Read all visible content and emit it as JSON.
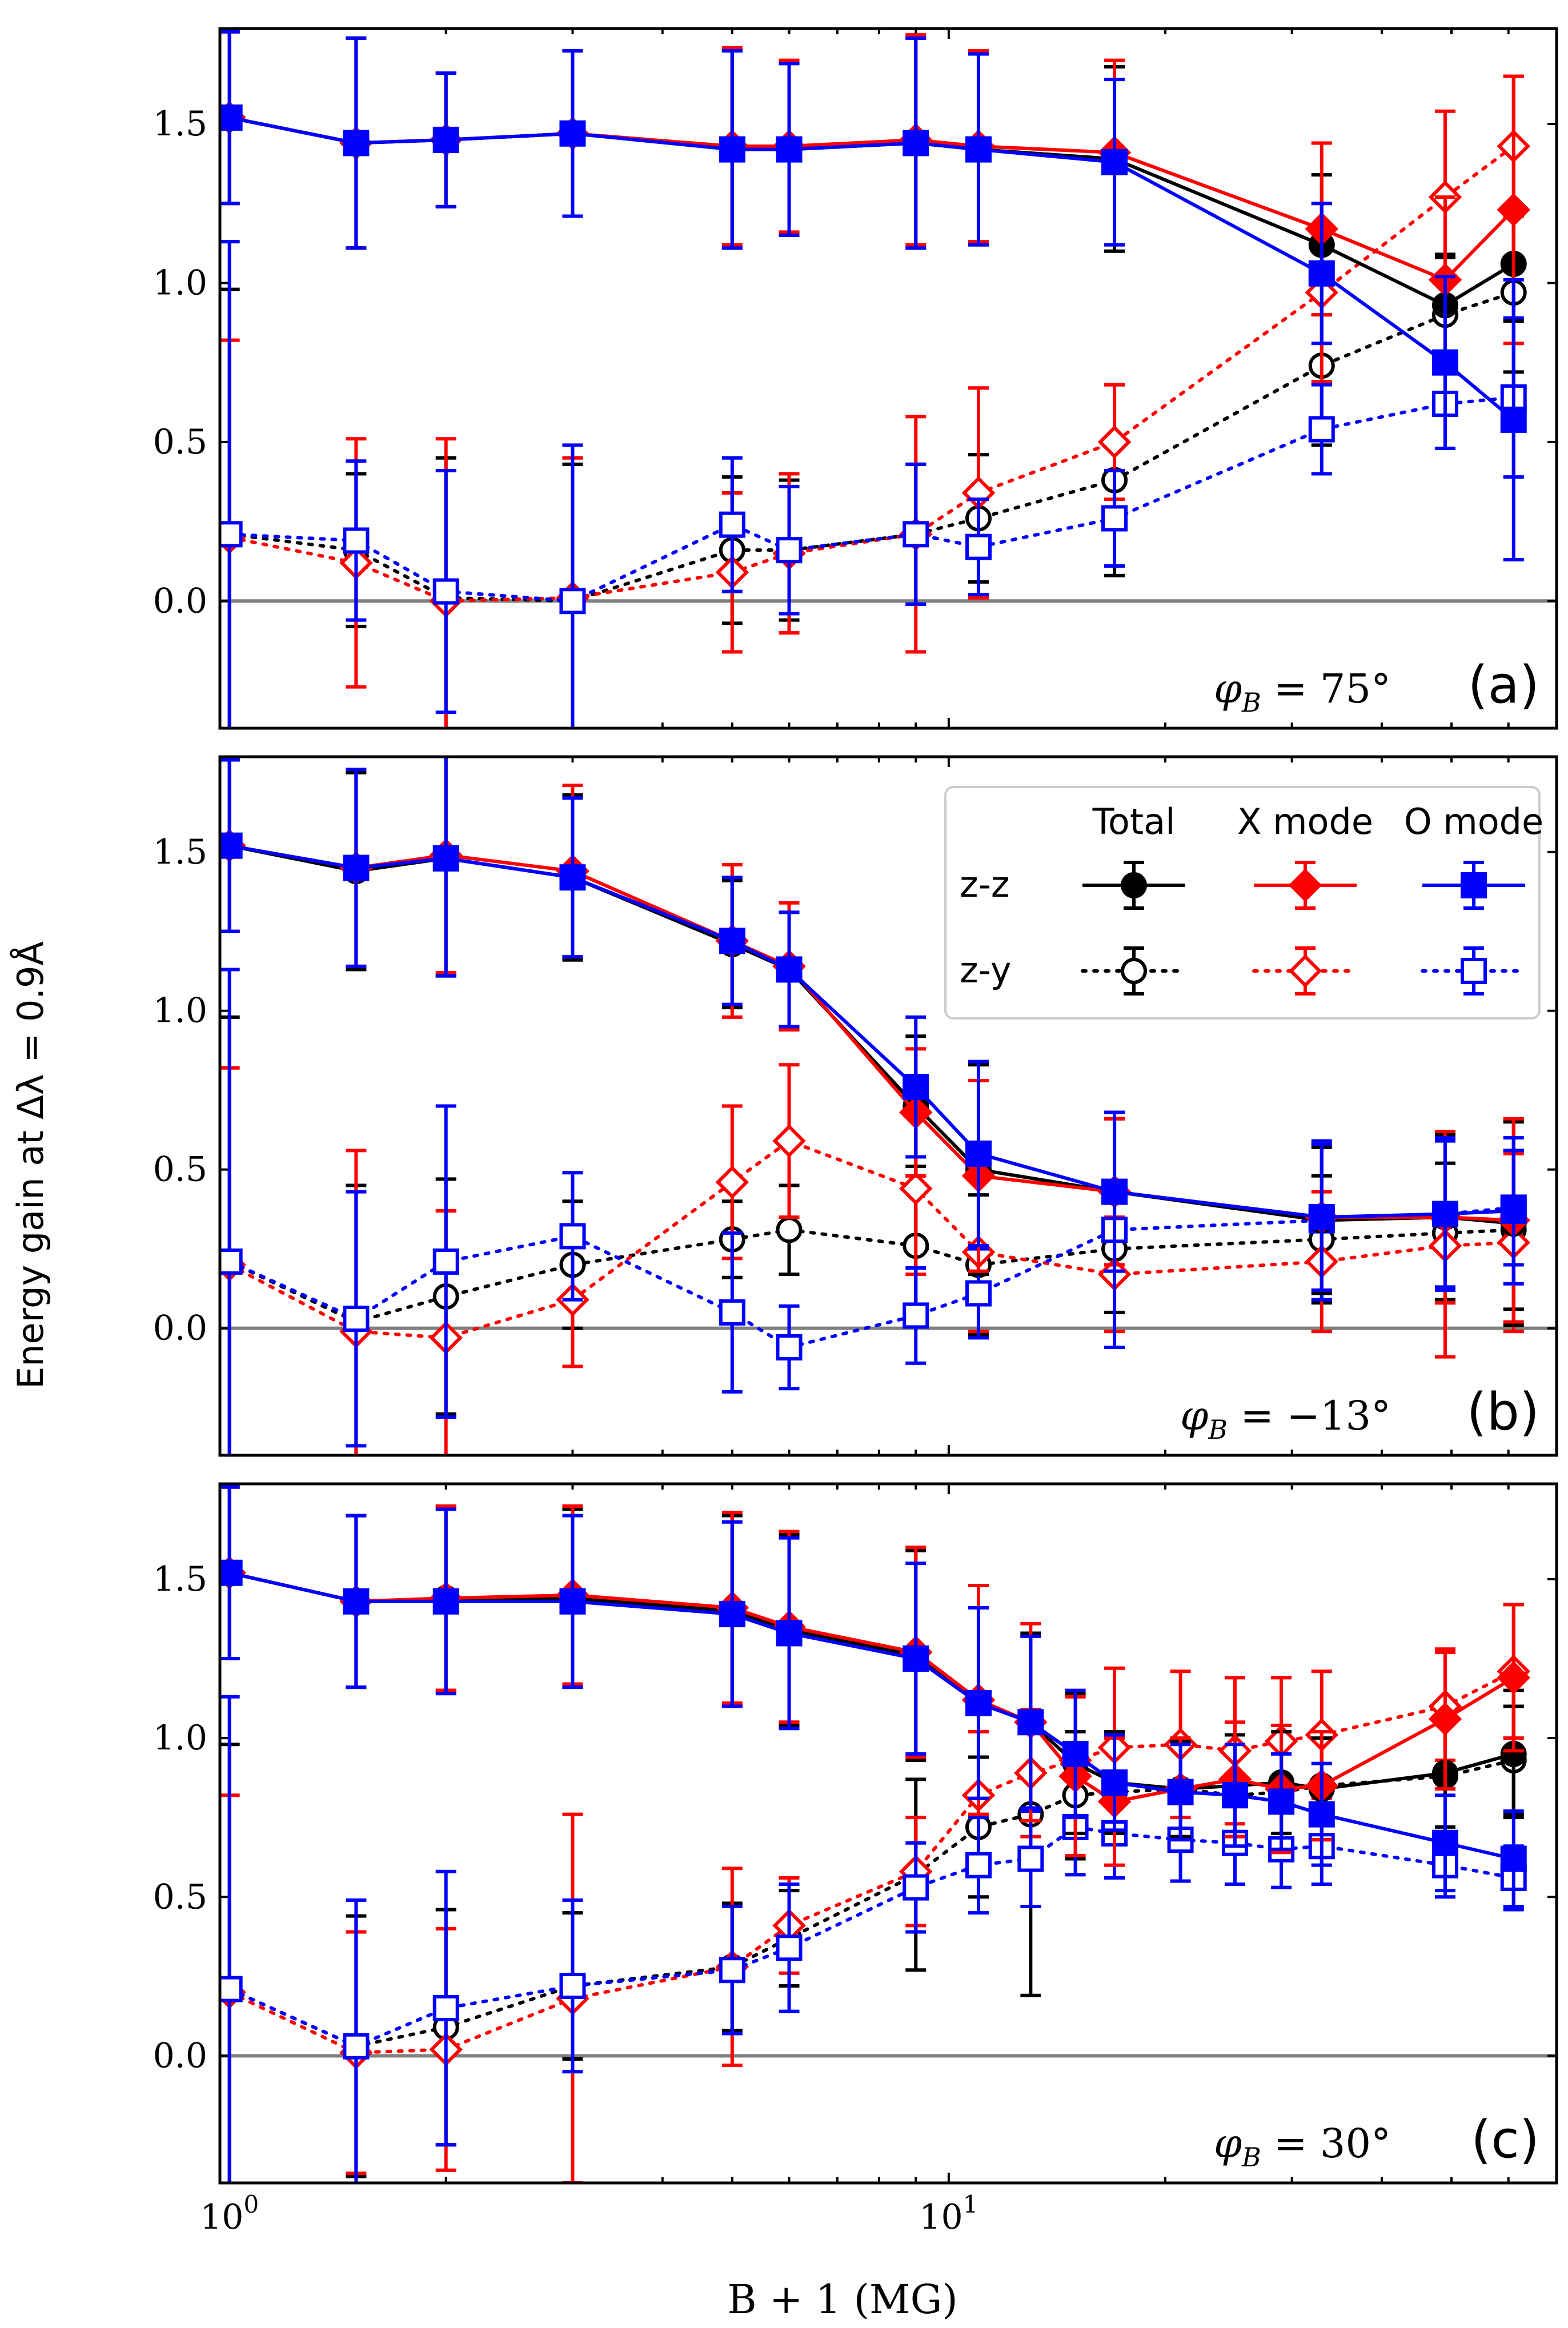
{
  "figure": {
    "ylabel": "Energy gain at Δλ = 0.9Å",
    "xlabel": "B + 1 (MG)"
  },
  "legend": {
    "col_headers": [
      "Total",
      "X mode",
      "O mode"
    ],
    "row_labels": [
      "z-z",
      "z-y"
    ]
  },
  "colors": {
    "total": "#000000",
    "xmode": "#ff0000",
    "omode": "#0000ff",
    "zero_line": "#808080"
  },
  "chart_data": [
    {
      "panel": "(a)",
      "angle_label": "φ_B = 75°",
      "type": "line",
      "xscale": "log",
      "xlim": [
        0.97,
        70
      ],
      "ylim": [
        -0.4,
        1.8
      ],
      "yticks": [
        "0.0",
        "0.5",
        "1.0",
        "1.5"
      ],
      "xticks": [],
      "series": [
        {
          "name": "Total z-z",
          "style": "solid",
          "marker": "circle-filled",
          "color": "#000000",
          "x": [
            1,
            1.5,
            2,
            3,
            5,
            6,
            9,
            11,
            17,
            33,
            49,
            61
          ],
          "y": [
            1.52,
            1.44,
            1.45,
            1.47,
            1.42,
            1.42,
            1.44,
            1.42,
            1.39,
            1.12,
            0.93,
            1.06
          ],
          "err": [
            0.27,
            0.33,
            0.21,
            0.26,
            0.31,
            0.27,
            0.33,
            0.3,
            0.29,
            0.22,
            0.16,
            0.18
          ]
        },
        {
          "name": "X mode z-z",
          "style": "solid",
          "marker": "diamond-filled",
          "color": "#ff0000",
          "x": [
            1,
            1.5,
            2,
            3,
            5,
            6,
            9,
            11,
            17,
            33,
            49,
            61
          ],
          "y": [
            1.52,
            1.44,
            1.45,
            1.47,
            1.43,
            1.43,
            1.45,
            1.43,
            1.41,
            1.17,
            1.01,
            1.23
          ],
          "err": [
            0.27,
            0.33,
            0.21,
            0.26,
            0.31,
            0.27,
            0.33,
            0.3,
            0.29,
            0.27,
            0.26,
            0.42
          ]
        },
        {
          "name": "O mode z-z",
          "style": "solid",
          "marker": "square-filled",
          "color": "#0000ff",
          "x": [
            1,
            1.5,
            2,
            3,
            5,
            6,
            9,
            11,
            17,
            33,
            49,
            61
          ],
          "y": [
            1.52,
            1.44,
            1.45,
            1.47,
            1.42,
            1.42,
            1.44,
            1.42,
            1.38,
            1.03,
            0.75,
            0.57
          ],
          "err": [
            0.27,
            0.33,
            0.21,
            0.26,
            0.31,
            0.27,
            0.33,
            0.3,
            0.26,
            0.22,
            0.27,
            0.44
          ]
        },
        {
          "name": "Total z-y",
          "style": "dotted",
          "marker": "circle-open",
          "color": "#000000",
          "x": [
            1,
            1.5,
            2,
            3,
            5,
            6,
            9,
            11,
            17,
            33,
            49,
            61
          ],
          "y": [
            0.21,
            0.16,
            0.01,
            0.0,
            0.16,
            0.16,
            0.21,
            0.26,
            0.38,
            0.74,
            0.9,
            0.97
          ],
          "err": [
            0.77,
            0.24,
            0.44,
            0.43,
            0.23,
            0.22,
            0.22,
            0.2,
            0.3,
            0.25,
            0.18,
            0.25
          ]
        },
        {
          "name": "X mode z-y",
          "style": "dotted",
          "marker": "diamond-open",
          "color": "#ff0000",
          "x": [
            1,
            1.5,
            2,
            3,
            5,
            6,
            9,
            11,
            17,
            33,
            49,
            61
          ],
          "y": [
            0.2,
            0.12,
            0.0,
            0.01,
            0.09,
            0.15,
            0.21,
            0.34,
            0.5,
            0.97,
            1.27,
            1.43
          ],
          "err": [
            0.62,
            0.39,
            0.51,
            0.44,
            0.25,
            0.25,
            0.37,
            0.33,
            0.18,
            0.28,
            0.27,
            0.22
          ]
        },
        {
          "name": "O mode z-y",
          "style": "dotted",
          "marker": "square-open",
          "color": "#0000ff",
          "x": [
            1,
            1.5,
            2,
            3,
            5,
            6,
            9,
            11,
            17,
            33,
            49,
            61
          ],
          "y": [
            0.21,
            0.19,
            0.03,
            0.0,
            0.24,
            0.16,
            0.21,
            0.17,
            0.26,
            0.54,
            0.62,
            0.64
          ],
          "err": [
            0.92,
            0.25,
            0.38,
            0.49,
            0.21,
            0.2,
            0.22,
            0.15,
            0.15,
            0.14,
            0.14,
            0.25
          ]
        }
      ]
    },
    {
      "panel": "(b)",
      "angle_label": "φ_B = −13°",
      "type": "line",
      "xscale": "log",
      "xlim": [
        0.97,
        70
      ],
      "ylim": [
        -0.4,
        1.8
      ],
      "yticks": [
        "0.0",
        "0.5",
        "1.0",
        "1.5"
      ],
      "xticks": [],
      "series": [
        {
          "name": "Total z-z",
          "style": "solid",
          "marker": "circle-filled",
          "color": "#000000",
          "x": [
            1,
            1.5,
            2,
            3,
            5,
            6,
            9,
            11,
            17,
            33,
            49,
            61
          ],
          "y": [
            1.52,
            1.44,
            1.48,
            1.42,
            1.21,
            1.13,
            0.7,
            0.5,
            0.43,
            0.34,
            0.35,
            0.33
          ],
          "err": [
            0.27,
            0.31,
            0.37,
            0.26,
            0.2,
            0.18,
            0.22,
            0.33,
            0.23,
            0.23,
            0.26,
            0.32
          ]
        },
        {
          "name": "X mode z-z",
          "style": "solid",
          "marker": "diamond-filled",
          "color": "#ff0000",
          "x": [
            1,
            1.5,
            2,
            3,
            5,
            6,
            9,
            11,
            17,
            33,
            49,
            61
          ],
          "y": [
            1.52,
            1.45,
            1.49,
            1.44,
            1.22,
            1.14,
            0.68,
            0.48,
            0.43,
            0.35,
            0.35,
            0.34
          ],
          "err": [
            0.27,
            0.31,
            0.37,
            0.27,
            0.24,
            0.2,
            0.2,
            0.3,
            0.23,
            0.23,
            0.27,
            0.32
          ]
        },
        {
          "name": "O mode z-z",
          "style": "solid",
          "marker": "square-filled",
          "color": "#0000ff",
          "x": [
            1,
            1.5,
            2,
            3,
            5,
            6,
            9,
            11,
            17,
            33,
            49,
            61
          ],
          "y": [
            1.52,
            1.45,
            1.48,
            1.42,
            1.22,
            1.13,
            0.76,
            0.55,
            0.43,
            0.35,
            0.36,
            0.37
          ],
          "err": [
            0.27,
            0.31,
            0.37,
            0.25,
            0.2,
            0.18,
            0.22,
            0.29,
            0.25,
            0.23,
            0.24,
            0.23
          ]
        },
        {
          "name": "Total z-y",
          "style": "dotted",
          "marker": "circle-open",
          "color": "#000000",
          "x": [
            1,
            1.5,
            2,
            3,
            5,
            6,
            9,
            11,
            17,
            33,
            49,
            61
          ],
          "y": [
            0.21,
            0.02,
            0.1,
            0.2,
            0.28,
            0.31,
            0.26,
            0.2,
            0.25,
            0.28,
            0.3,
            0.31
          ],
          "err": [
            0.77,
            0.43,
            0.37,
            0.2,
            0.12,
            0.14,
            0.25,
            0.22,
            0.2,
            0.2,
            0.22,
            0.25
          ]
        },
        {
          "name": "X mode z-y",
          "style": "dotted",
          "marker": "diamond-open",
          "color": "#ff0000",
          "x": [
            1,
            1.5,
            2,
            3,
            5,
            6,
            9,
            11,
            17,
            33,
            49,
            61
          ],
          "y": [
            0.2,
            -0.01,
            -0.03,
            0.09,
            0.46,
            0.59,
            0.44,
            0.24,
            0.17,
            0.21,
            0.26,
            0.27
          ],
          "err": [
            0.62,
            0.57,
            0.4,
            0.21,
            0.24,
            0.24,
            0.27,
            0.25,
            0.18,
            0.22,
            0.35,
            0.28
          ]
        },
        {
          "name": "O mode z-y",
          "style": "dotted",
          "marker": "square-open",
          "color": "#0000ff",
          "x": [
            1,
            1.5,
            2,
            3,
            5,
            6,
            9,
            11,
            17,
            33,
            49,
            61
          ],
          "y": [
            0.21,
            0.03,
            0.21,
            0.29,
            0.05,
            -0.06,
            0.04,
            0.11,
            0.31,
            0.34,
            0.36,
            0.38
          ],
          "err": [
            0.92,
            0.4,
            0.49,
            0.2,
            0.25,
            0.13,
            0.15,
            0.14,
            0.37,
            0.25,
            0.23,
            0.18
          ]
        }
      ]
    },
    {
      "panel": "(c)",
      "angle_label": "φ_B = 30°",
      "type": "line",
      "xscale": "log",
      "xlim": [
        0.97,
        70
      ],
      "ylim": [
        -0.4,
        1.8
      ],
      "yticks": [
        "0.0",
        "0.5",
        "1.0",
        "1.5"
      ],
      "xticks": [
        "10^0",
        "10^1"
      ],
      "series": [
        {
          "name": "Total z-z",
          "style": "solid",
          "marker": "circle-filled",
          "color": "#000000",
          "x": [
            1,
            1.5,
            2,
            3,
            5,
            6,
            9,
            11,
            13,
            15,
            17,
            21,
            25,
            29,
            33,
            49,
            61
          ],
          "y": [
            1.52,
            1.43,
            1.44,
            1.44,
            1.4,
            1.34,
            1.26,
            1.11,
            1.05,
            0.92,
            0.86,
            0.84,
            0.85,
            0.86,
            0.84,
            0.89,
            0.95
          ],
          "err": [
            0.27,
            0.27,
            0.29,
            0.28,
            0.3,
            0.3,
            0.33,
            0.3,
            0.27,
            0.22,
            0.16,
            0.15,
            0.16,
            0.16,
            0.16,
            0.17,
            0.2
          ]
        },
        {
          "name": "X mode z-z",
          "style": "solid",
          "marker": "diamond-filled",
          "color": "#ff0000",
          "x": [
            1,
            1.5,
            2,
            3,
            5,
            6,
            9,
            11,
            13,
            15,
            17,
            21,
            25,
            29,
            33,
            49,
            61
          ],
          "y": [
            1.52,
            1.43,
            1.44,
            1.45,
            1.41,
            1.35,
            1.27,
            1.12,
            1.05,
            0.88,
            0.8,
            0.84,
            0.87,
            0.84,
            0.85,
            1.06,
            1.19
          ],
          "err": [
            0.27,
            0.27,
            0.29,
            0.28,
            0.3,
            0.3,
            0.33,
            0.36,
            0.31,
            0.25,
            0.2,
            0.16,
            0.18,
            0.2,
            0.17,
            0.22,
            0.23
          ]
        },
        {
          "name": "O mode z-z",
          "style": "solid",
          "marker": "square-filled",
          "color": "#0000ff",
          "x": [
            1,
            1.5,
            2,
            3,
            5,
            6,
            9,
            11,
            13,
            15,
            17,
            21,
            25,
            29,
            33,
            49,
            61
          ],
          "y": [
            1.52,
            1.43,
            1.43,
            1.43,
            1.39,
            1.33,
            1.25,
            1.11,
            1.05,
            0.95,
            0.86,
            0.83,
            0.82,
            0.8,
            0.76,
            0.67,
            0.62
          ],
          "err": [
            0.27,
            0.27,
            0.29,
            0.27,
            0.29,
            0.3,
            0.3,
            0.3,
            0.27,
            0.2,
            0.15,
            0.15,
            0.16,
            0.15,
            0.16,
            0.15,
            0.15
          ]
        },
        {
          "name": "Total z-y",
          "style": "dotted",
          "marker": "circle-open",
          "color": "#000000",
          "x": [
            1,
            1.5,
            2,
            3,
            5,
            6,
            9,
            11,
            13,
            15,
            17,
            21,
            25,
            29,
            33,
            49,
            61
          ],
          "y": [
            0.21,
            0.03,
            0.09,
            0.22,
            0.28,
            0.37,
            0.57,
            0.72,
            0.76,
            0.82,
            0.83,
            0.84,
            0.82,
            0.83,
            0.85,
            0.88,
            0.93
          ],
          "err": [
            0.77,
            0.41,
            0.37,
            0.23,
            0.2,
            0.15,
            0.3,
            0.22,
            0.57,
            0.2,
            0.15,
            0.15,
            0.15,
            0.15,
            0.17,
            0.18,
            0.17
          ]
        },
        {
          "name": "X mode z-y",
          "style": "dotted",
          "marker": "diamond-open",
          "color": "#ff0000",
          "x": [
            1,
            1.5,
            2,
            3,
            5,
            6,
            9,
            11,
            13,
            15,
            17,
            21,
            25,
            29,
            33,
            49,
            61
          ],
          "y": [
            0.2,
            0.01,
            0.02,
            0.18,
            0.28,
            0.41,
            0.58,
            0.82,
            0.89,
            0.93,
            0.97,
            0.98,
            0.96,
            0.99,
            1.01,
            1.1,
            1.21
          ],
          "err": [
            0.62,
            0.38,
            0.38,
            0.58,
            0.31,
            0.15,
            0.17,
            0.2,
            0.2,
            0.2,
            0.25,
            0.23,
            0.23,
            0.2,
            0.2,
            0.17,
            0.21
          ]
        },
        {
          "name": "O mode z-y",
          "style": "dotted",
          "marker": "square-open",
          "color": "#0000ff",
          "x": [
            1,
            1.5,
            2,
            3,
            5,
            6,
            9,
            11,
            13,
            15,
            17,
            21,
            25,
            29,
            33,
            49,
            61
          ],
          "y": [
            0.21,
            0.03,
            0.15,
            0.22,
            0.27,
            0.34,
            0.53,
            0.6,
            0.62,
            0.72,
            0.7,
            0.68,
            0.67,
            0.65,
            0.66,
            0.6,
            0.56
          ],
          "err": [
            0.92,
            0.46,
            0.43,
            0.27,
            0.2,
            0.2,
            0.14,
            0.15,
            0.15,
            0.15,
            0.14,
            0.13,
            0.13,
            0.12,
            0.12,
            0.1,
            0.1
          ]
        }
      ]
    }
  ]
}
